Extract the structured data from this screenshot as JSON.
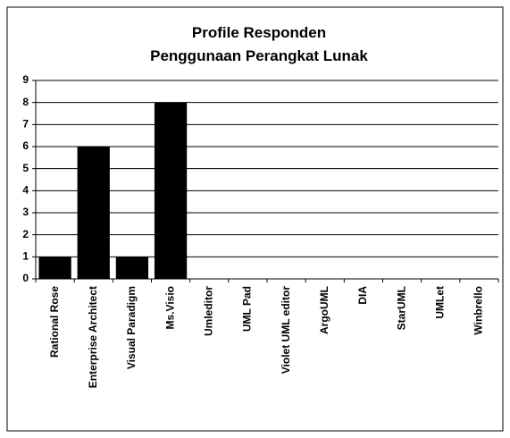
{
  "chart_data": {
    "type": "bar",
    "title": [
      "Profile Responden",
      "Penggunaan Perangkat Lunak"
    ],
    "categories": [
      "Rational Rose",
      "Enterprise Architect",
      "Visual Paradigm",
      "Ms.Visio",
      "Umleditor",
      "UML Pad",
      "Violet UML editor",
      "ArgoUML",
      "DIA",
      "StarUML",
      "UMLet",
      "Winbrello"
    ],
    "values": [
      1,
      6,
      1,
      8,
      0,
      0,
      0,
      0,
      0,
      0,
      0,
      0
    ],
    "color": "#000000",
    "ylim": [
      0,
      9
    ],
    "yticks": [
      0,
      1,
      2,
      3,
      4,
      5,
      6,
      7,
      8,
      9
    ],
    "grid": true
  }
}
